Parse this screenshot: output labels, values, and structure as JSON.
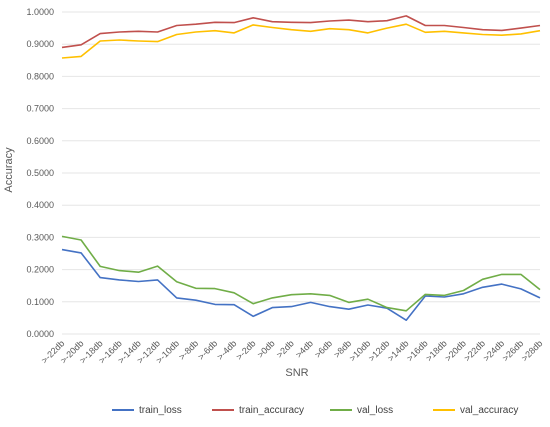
{
  "chart_data": {
    "type": "line",
    "title": "",
    "xlabel": "SNR",
    "ylabel": "Accuracy",
    "ylim": [
      0,
      1.0
    ],
    "yticks": [
      "0.0000",
      "0.1000",
      "0.2000",
      "0.3000",
      "0.4000",
      "0.5000",
      "0.6000",
      "0.7000",
      "0.8000",
      "0.9000",
      "1.0000"
    ],
    "grid": true,
    "legend_position": "bottom",
    "categories": [
      ">-22db",
      ">-20db",
      ">-18db",
      ">-16db",
      ">-14db",
      ">-12db",
      ">-10db",
      ">-8db",
      ">-6db",
      ">-4db",
      ">-2db",
      ">0db",
      ">2db",
      ">4db",
      ">6db",
      ">8db",
      ">10db",
      ">12db",
      ">14db",
      ">16db",
      ">18db",
      ">20db",
      ">22db",
      ">24db",
      ">26db",
      ">28db"
    ],
    "series": [
      {
        "name": "train_loss",
        "color": "#4472c4",
        "values": [
          0.262,
          0.252,
          0.175,
          0.168,
          0.163,
          0.168,
          0.112,
          0.105,
          0.092,
          0.091,
          0.055,
          0.082,
          0.085,
          0.098,
          0.085,
          0.077,
          0.09,
          0.08,
          0.043,
          0.118,
          0.115,
          0.125,
          0.145,
          0.155,
          0.14,
          0.112
        ]
      },
      {
        "name": "train_accuracy",
        "color": "#c0504d",
        "values": [
          0.89,
          0.898,
          0.933,
          0.938,
          0.94,
          0.938,
          0.958,
          0.962,
          0.968,
          0.967,
          0.982,
          0.97,
          0.968,
          0.967,
          0.972,
          0.975,
          0.97,
          0.973,
          0.988,
          0.958,
          0.958,
          0.952,
          0.945,
          0.943,
          0.95,
          0.958
        ]
      },
      {
        "name": "val_loss",
        "color": "#70ad47",
        "values": [
          0.303,
          0.292,
          0.21,
          0.197,
          0.192,
          0.211,
          0.162,
          0.142,
          0.141,
          0.128,
          0.094,
          0.112,
          0.122,
          0.125,
          0.12,
          0.098,
          0.108,
          0.082,
          0.072,
          0.123,
          0.12,
          0.135,
          0.17,
          0.185,
          0.185,
          0.138
        ]
      },
      {
        "name": "val_accuracy",
        "color": "#ffc000",
        "values": [
          0.857,
          0.862,
          0.91,
          0.913,
          0.91,
          0.908,
          0.93,
          0.938,
          0.942,
          0.935,
          0.96,
          0.952,
          0.945,
          0.94,
          0.948,
          0.945,
          0.935,
          0.95,
          0.962,
          0.937,
          0.94,
          0.935,
          0.93,
          0.928,
          0.932,
          0.942
        ]
      }
    ]
  }
}
